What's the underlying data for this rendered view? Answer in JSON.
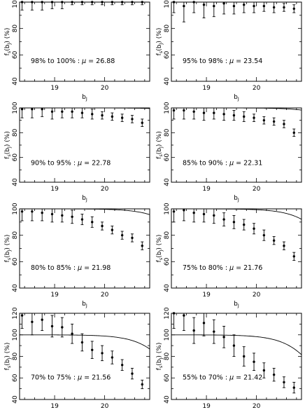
{
  "chart_data": [
    {
      "type": "scatter",
      "annotation_range": "98% to 100%",
      "annotation_mu": "26.88",
      "ylabel_main": "f",
      "ylabel_sub": "s",
      "ylabel_arg": "(b",
      "ylabel_argsub": "J",
      "ylabel_unit": ") (%)",
      "xlabel_main": "b",
      "xlabel_sub": "J",
      "xlim": [
        18.3,
        20.9
      ],
      "ylim": [
        40,
        100
      ],
      "xticks": [
        19,
        20
      ],
      "yticks": [
        40,
        60,
        80,
        100
      ],
      "grid": false,
      "fit": {
        "mu": 26.88
      },
      "points": [
        {
          "x": 18.35,
          "y": 100,
          "err": 6
        },
        {
          "x": 18.55,
          "y": 100,
          "err": 6
        },
        {
          "x": 18.75,
          "y": 100,
          "err": 6
        },
        {
          "x": 18.95,
          "y": 100,
          "err": 5
        },
        {
          "x": 19.15,
          "y": 100,
          "err": 5
        },
        {
          "x": 19.35,
          "y": 100,
          "err": 2
        },
        {
          "x": 19.55,
          "y": 100,
          "err": 2
        },
        {
          "x": 19.75,
          "y": 100,
          "err": 2
        },
        {
          "x": 19.95,
          "y": 100,
          "err": 2
        },
        {
          "x": 20.15,
          "y": 100,
          "err": 2
        },
        {
          "x": 20.35,
          "y": 100,
          "err": 2
        },
        {
          "x": 20.55,
          "y": 100,
          "err": 2
        },
        {
          "x": 20.75,
          "y": 100,
          "err": 2
        }
      ]
    },
    {
      "type": "scatter",
      "annotation_range": "95% to 98%",
      "annotation_mu": "23.54",
      "ylabel_main": "f",
      "ylabel_sub": "s",
      "ylabel_arg": "(b",
      "ylabel_argsub": "J",
      "ylabel_unit": ") (%)",
      "xlabel_main": "b",
      "xlabel_sub": "J",
      "xlim": [
        18.3,
        20.9
      ],
      "ylim": [
        40,
        100
      ],
      "xticks": [
        19,
        20
      ],
      "yticks": [
        40,
        60,
        80,
        100
      ],
      "grid": false,
      "fit": {
        "mu": 23.54
      },
      "points": [
        {
          "x": 18.35,
          "y": 100,
          "err": 8
        },
        {
          "x": 18.55,
          "y": 97,
          "err": 12
        },
        {
          "x": 18.75,
          "y": 100,
          "err": 8
        },
        {
          "x": 18.95,
          "y": 98,
          "err": 10
        },
        {
          "x": 19.15,
          "y": 97,
          "err": 8
        },
        {
          "x": 19.35,
          "y": 99,
          "err": 8
        },
        {
          "x": 19.55,
          "y": 97,
          "err": 6
        },
        {
          "x": 19.75,
          "y": 98,
          "err": 6
        },
        {
          "x": 19.95,
          "y": 97,
          "err": 5
        },
        {
          "x": 20.15,
          "y": 97,
          "err": 4
        },
        {
          "x": 20.35,
          "y": 96,
          "err": 4
        },
        {
          "x": 20.55,
          "y": 96,
          "err": 3
        },
        {
          "x": 20.75,
          "y": 95,
          "err": 3
        }
      ]
    },
    {
      "type": "scatter",
      "annotation_range": "90% to 95%",
      "annotation_mu": "22.78",
      "ylabel_main": "f",
      "ylabel_sub": "s",
      "ylabel_arg": "(b",
      "ylabel_argsub": "J",
      "ylabel_unit": ") (%)",
      "xlabel_main": "b",
      "xlabel_sub": "J",
      "xlim": [
        18.3,
        20.9
      ],
      "ylim": [
        40,
        100
      ],
      "xticks": [
        19,
        20
      ],
      "yticks": [
        40,
        60,
        80,
        100
      ],
      "grid": false,
      "fit": {
        "mu": 22.78
      },
      "points": [
        {
          "x": 18.35,
          "y": 99,
          "err": 7
        },
        {
          "x": 18.55,
          "y": 99,
          "err": 7
        },
        {
          "x": 18.75,
          "y": 99,
          "err": 6
        },
        {
          "x": 18.95,
          "y": 97,
          "err": 6
        },
        {
          "x": 19.15,
          "y": 97,
          "err": 5
        },
        {
          "x": 19.35,
          "y": 97,
          "err": 5
        },
        {
          "x": 19.55,
          "y": 96,
          "err": 4
        },
        {
          "x": 19.75,
          "y": 95,
          "err": 4
        },
        {
          "x": 19.95,
          "y": 94,
          "err": 3
        },
        {
          "x": 20.15,
          "y": 93,
          "err": 3
        },
        {
          "x": 20.35,
          "y": 92,
          "err": 3
        },
        {
          "x": 20.55,
          "y": 91,
          "err": 3
        },
        {
          "x": 20.75,
          "y": 88,
          "err": 3
        }
      ]
    },
    {
      "type": "scatter",
      "annotation_range": "85% to 90%",
      "annotation_mu": "22.31",
      "ylabel_main": "f",
      "ylabel_sub": "s",
      "ylabel_arg": "(b",
      "ylabel_argsub": "J",
      "ylabel_unit": ") (%)",
      "xlabel_main": "b",
      "xlabel_sub": "J",
      "xlim": [
        18.3,
        20.9
      ],
      "ylim": [
        40,
        100
      ],
      "xticks": [
        19,
        20
      ],
      "yticks": [
        40,
        60,
        80,
        100
      ],
      "grid": false,
      "fit": {
        "mu": 22.31
      },
      "points": [
        {
          "x": 18.35,
          "y": 98,
          "err": 7
        },
        {
          "x": 18.55,
          "y": 98,
          "err": 7
        },
        {
          "x": 18.75,
          "y": 97,
          "err": 6
        },
        {
          "x": 18.95,
          "y": 96,
          "err": 6
        },
        {
          "x": 19.15,
          "y": 96,
          "err": 5
        },
        {
          "x": 19.35,
          "y": 95,
          "err": 5
        },
        {
          "x": 19.55,
          "y": 94,
          "err": 4
        },
        {
          "x": 19.75,
          "y": 93,
          "err": 4
        },
        {
          "x": 19.95,
          "y": 92,
          "err": 3
        },
        {
          "x": 20.15,
          "y": 90,
          "err": 3
        },
        {
          "x": 20.35,
          "y": 89,
          "err": 3
        },
        {
          "x": 20.55,
          "y": 87,
          "err": 3
        },
        {
          "x": 20.75,
          "y": 80,
          "err": 3
        }
      ]
    },
    {
      "type": "scatter",
      "annotation_range": "80% to 85%",
      "annotation_mu": "21.98",
      "ylabel_main": "f",
      "ylabel_sub": "s",
      "ylabel_arg": "(b",
      "ylabel_argsub": "J",
      "ylabel_unit": ") (%)",
      "xlabel_main": "b",
      "xlabel_sub": "J",
      "xlim": [
        18.3,
        20.9
      ],
      "ylim": [
        40,
        100
      ],
      "xticks": [
        19,
        20
      ],
      "yticks": [
        40,
        60,
        80,
        100
      ],
      "grid": false,
      "fit": {
        "mu": 21.98
      },
      "points": [
        {
          "x": 18.35,
          "y": 98,
          "err": 7
        },
        {
          "x": 18.55,
          "y": 98,
          "err": 7
        },
        {
          "x": 18.75,
          "y": 97,
          "err": 6
        },
        {
          "x": 18.95,
          "y": 96,
          "err": 6
        },
        {
          "x": 19.15,
          "y": 95,
          "err": 5
        },
        {
          "x": 19.35,
          "y": 94,
          "err": 5
        },
        {
          "x": 19.55,
          "y": 92,
          "err": 4
        },
        {
          "x": 19.75,
          "y": 90,
          "err": 4
        },
        {
          "x": 19.95,
          "y": 87,
          "err": 3
        },
        {
          "x": 20.15,
          "y": 84,
          "err": 3
        },
        {
          "x": 20.35,
          "y": 80,
          "err": 3
        },
        {
          "x": 20.55,
          "y": 78,
          "err": 3
        },
        {
          "x": 20.75,
          "y": 72,
          "err": 3
        }
      ]
    },
    {
      "type": "scatter",
      "annotation_range": "75% to 80%",
      "annotation_mu": "21.76",
      "ylabel_main": "f",
      "ylabel_sub": "s",
      "ylabel_arg": "(b",
      "ylabel_argsub": "J",
      "ylabel_unit": ") (%)",
      "xlabel_main": "b",
      "xlabel_sub": "J",
      "xlim": [
        18.3,
        20.9
      ],
      "ylim": [
        40,
        100
      ],
      "xticks": [
        19,
        20
      ],
      "yticks": [
        40,
        60,
        80,
        100
      ],
      "grid": false,
      "fit": {
        "mu": 21.76
      },
      "points": [
        {
          "x": 18.35,
          "y": 98,
          "err": 8
        },
        {
          "x": 18.55,
          "y": 99,
          "err": 8
        },
        {
          "x": 18.75,
          "y": 97,
          "err": 7
        },
        {
          "x": 18.95,
          "y": 96,
          "err": 6
        },
        {
          "x": 19.15,
          "y": 95,
          "err": 6
        },
        {
          "x": 19.35,
          "y": 92,
          "err": 5
        },
        {
          "x": 19.55,
          "y": 90,
          "err": 5
        },
        {
          "x": 19.75,
          "y": 88,
          "err": 4
        },
        {
          "x": 19.95,
          "y": 85,
          "err": 4
        },
        {
          "x": 20.15,
          "y": 80,
          "err": 4
        },
        {
          "x": 20.35,
          "y": 76,
          "err": 3
        },
        {
          "x": 20.55,
          "y": 72,
          "err": 3
        },
        {
          "x": 20.75,
          "y": 64,
          "err": 3
        }
      ]
    },
    {
      "type": "scatter",
      "annotation_range": "70% to 75%",
      "annotation_mu": "21.56",
      "ylabel_main": "f",
      "ylabel_sub": "s",
      "ylabel_arg": "(b",
      "ylabel_argsub": "J",
      "ylabel_unit": ") (%)",
      "xlabel_main": "b",
      "xlabel_sub": "J",
      "xlim": [
        18.3,
        20.9
      ],
      "ylim": [
        40,
        120
      ],
      "xticks": [
        19,
        20
      ],
      "yticks": [
        40,
        60,
        80,
        100,
        120
      ],
      "grid": false,
      "fit": {
        "mu": 21.56
      },
      "points": [
        {
          "x": 18.35,
          "y": 118,
          "err": 12
        },
        {
          "x": 18.55,
          "y": 112,
          "err": 12
        },
        {
          "x": 18.75,
          "y": 114,
          "err": 10
        },
        {
          "x": 18.95,
          "y": 108,
          "err": 10
        },
        {
          "x": 19.15,
          "y": 107,
          "err": 9
        },
        {
          "x": 19.35,
          "y": 101,
          "err": 9
        },
        {
          "x": 19.55,
          "y": 93,
          "err": 8
        },
        {
          "x": 19.75,
          "y": 86,
          "err": 8
        },
        {
          "x": 19.95,
          "y": 83,
          "err": 7
        },
        {
          "x": 20.15,
          "y": 79,
          "err": 6
        },
        {
          "x": 20.35,
          "y": 72,
          "err": 5
        },
        {
          "x": 20.55,
          "y": 64,
          "err": 5
        },
        {
          "x": 20.75,
          "y": 54,
          "err": 4
        }
      ]
    },
    {
      "type": "scatter",
      "annotation_range": "55% to 70%",
      "annotation_mu": "21.42",
      "ylabel_main": "f",
      "ylabel_sub": "s",
      "ylabel_arg": "(b",
      "ylabel_argsub": "J",
      "ylabel_unit": ") (%)",
      "xlabel_main": "b",
      "xlabel_sub": "J",
      "xlim": [
        18.3,
        20.9
      ],
      "ylim": [
        40,
        120
      ],
      "xticks": [
        19,
        20
      ],
      "yticks": [
        40,
        60,
        80,
        100,
        120
      ],
      "grid": false,
      "fit": {
        "mu": 21.42
      },
      "points": [
        {
          "x": 18.35,
          "y": 120,
          "err": 14
        },
        {
          "x": 18.55,
          "y": 118,
          "err": 14
        },
        {
          "x": 18.75,
          "y": 104,
          "err": 12
        },
        {
          "x": 18.95,
          "y": 111,
          "err": 12
        },
        {
          "x": 19.15,
          "y": 103,
          "err": 11
        },
        {
          "x": 19.35,
          "y": 98,
          "err": 10
        },
        {
          "x": 19.55,
          "y": 90,
          "err": 10
        },
        {
          "x": 19.75,
          "y": 80,
          "err": 9
        },
        {
          "x": 19.95,
          "y": 75,
          "err": 8
        },
        {
          "x": 20.15,
          "y": 67,
          "err": 7
        },
        {
          "x": 20.35,
          "y": 63,
          "err": 6
        },
        {
          "x": 20.55,
          "y": 56,
          "err": 5
        },
        {
          "x": 20.75,
          "y": 51,
          "err": 5
        }
      ]
    }
  ]
}
